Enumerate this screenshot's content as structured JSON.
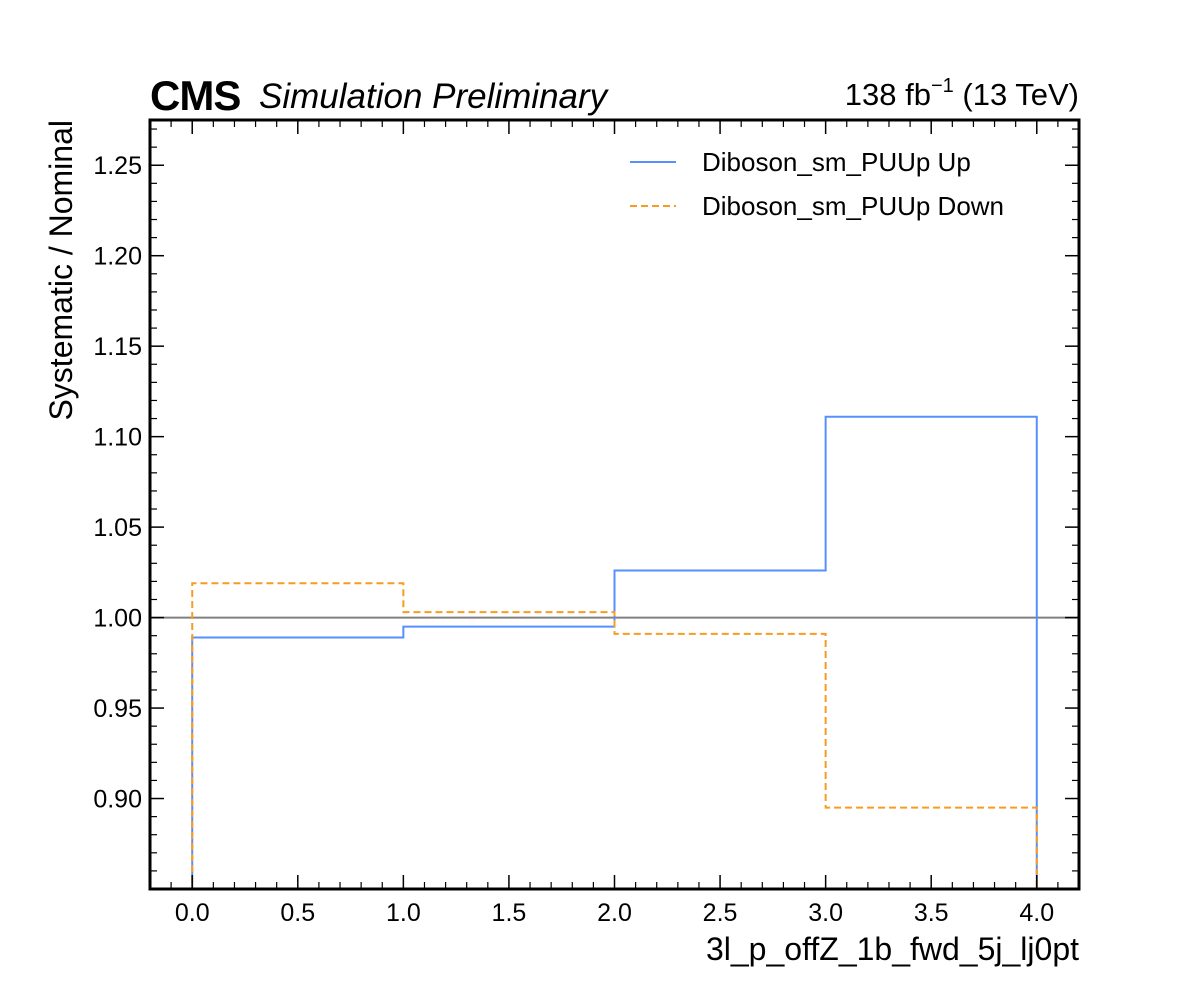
{
  "header": {
    "experiment": "CMS",
    "extra": "Simulation Preliminary",
    "lumi_prefix": "138 fb",
    "lumi_exp": "−1",
    "lumi_suffix": " (13 TeV)"
  },
  "chart_data": {
    "type": "line",
    "drawstyle": "steps",
    "xlabel": "3l_p_offZ_1b_fwd_5j_lj0pt",
    "ylabel": "Systematic / Nominal",
    "xlim": [
      -0.2,
      4.2
    ],
    "ylim": [
      0.85,
      1.275
    ],
    "xticks": [
      0.0,
      0.5,
      1.0,
      1.5,
      2.0,
      2.5,
      3.0,
      3.5,
      4.0
    ],
    "xtick_labels": [
      "0.0",
      "0.5",
      "1.0",
      "1.5",
      "2.0",
      "2.5",
      "3.0",
      "3.5",
      "4.0"
    ],
    "yticks": [
      0.9,
      0.95,
      1.0,
      1.05,
      1.1,
      1.15,
      1.2,
      1.25
    ],
    "ytick_labels": [
      "0.90",
      "0.95",
      "1.00",
      "1.05",
      "1.10",
      "1.15",
      "1.20",
      "1.25"
    ],
    "reference_line": 1.0,
    "reference_color": "#808080",
    "bin_edges": [
      0,
      1,
      2,
      3,
      4
    ],
    "series": [
      {
        "name": "Diboson_sm_PUUp Up",
        "values": [
          0.989,
          0.995,
          1.026,
          1.111
        ],
        "color": "#5790fc",
        "dash": "solid"
      },
      {
        "name": "Diboson_sm_PUUp Down",
        "values": [
          1.019,
          1.003,
          0.991,
          0.895
        ],
        "color": "#f89c20",
        "dash": "dashed"
      }
    ],
    "legend_position": "top-right",
    "grid": false
  }
}
